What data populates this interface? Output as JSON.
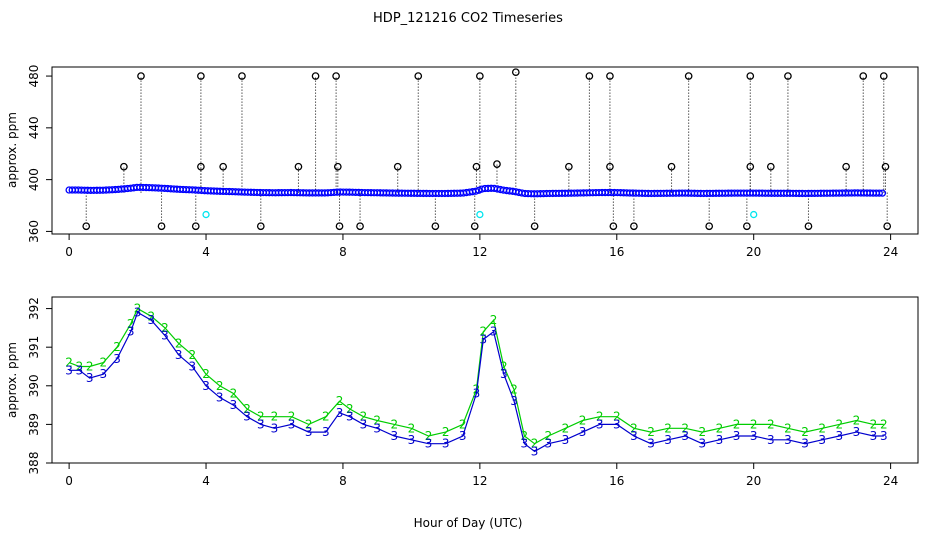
{
  "title": "HDP_121216  CO2 Timeseries",
  "chart_data": [
    {
      "type": "scatter",
      "panel": "top",
      "title": "HDP_121216  CO2 Timeseries",
      "xlabel": "",
      "ylabel": "approx. ppm",
      "xlim": [
        -0.5,
        24.8
      ],
      "ylim": [
        358,
        487
      ],
      "xticks": [
        "0",
        "4",
        "8",
        "12",
        "16",
        "20",
        "24"
      ],
      "yticks": [
        "360",
        "400",
        "440",
        "480"
      ],
      "baseline": 390,
      "colors": {
        "main": "#0000ff",
        "spike": "#000000",
        "cal": "#00e5ee"
      },
      "high_spikes": [
        [
          2.1,
          480
        ],
        [
          3.85,
          480
        ],
        [
          5.05,
          480
        ],
        [
          7.2,
          480
        ],
        [
          7.8,
          480
        ],
        [
          10.2,
          480
        ],
        [
          12.0,
          480
        ],
        [
          13.05,
          483
        ],
        [
          15.2,
          480
        ],
        [
          15.8,
          480
        ],
        [
          18.1,
          480
        ],
        [
          19.9,
          480
        ],
        [
          21.0,
          480
        ],
        [
          23.2,
          480
        ],
        [
          23.8,
          480
        ]
      ],
      "mid_spikes": [
        [
          1.6,
          410
        ],
        [
          3.85,
          410
        ],
        [
          4.5,
          410
        ],
        [
          6.7,
          410
        ],
        [
          7.85,
          410
        ],
        [
          9.6,
          410
        ],
        [
          11.9,
          410
        ],
        [
          12.5,
          412
        ],
        [
          14.6,
          410
        ],
        [
          15.8,
          410
        ],
        [
          17.6,
          410
        ],
        [
          19.9,
          410
        ],
        [
          20.5,
          410
        ],
        [
          22.7,
          410
        ],
        [
          23.85,
          410
        ]
      ],
      "low_spikes": [
        [
          0.5,
          364
        ],
        [
          2.7,
          364
        ],
        [
          3.7,
          364
        ],
        [
          5.6,
          364
        ],
        [
          7.9,
          364
        ],
        [
          8.5,
          364
        ],
        [
          10.7,
          364
        ],
        [
          11.85,
          364
        ],
        [
          13.6,
          364
        ],
        [
          15.9,
          364
        ],
        [
          16.5,
          364
        ],
        [
          18.7,
          364
        ],
        [
          19.8,
          364
        ],
        [
          21.6,
          364
        ],
        [
          23.9,
          364
        ]
      ],
      "cal_points": [
        [
          4.0,
          373
        ],
        [
          12.0,
          373
        ],
        [
          20.0,
          373
        ]
      ]
    },
    {
      "type": "line",
      "panel": "bottom",
      "xlabel": "Hour of Day (UTC)",
      "ylabel": "approx. ppm",
      "xlim": [
        -0.5,
        24.8
      ],
      "ylim": [
        388,
        392.3
      ],
      "xticks": [
        "0",
        "4",
        "8",
        "12",
        "16",
        "20",
        "24"
      ],
      "yticks": [
        "388",
        "389",
        "390",
        "391",
        "392"
      ],
      "series": [
        {
          "name": "3",
          "color": "#0000cd",
          "x": [
            0,
            0.3,
            0.6,
            1.0,
            1.4,
            1.8,
            2.0,
            2.4,
            2.8,
            3.2,
            3.6,
            4.0,
            4.4,
            4.8,
            5.2,
            5.6,
            6.0,
            6.5,
            7.0,
            7.5,
            7.9,
            8.2,
            8.6,
            9.0,
            9.5,
            10.0,
            10.5,
            11.0,
            11.5,
            11.9,
            12.1,
            12.4,
            12.7,
            13.0,
            13.3,
            13.6,
            14.0,
            14.5,
            15.0,
            15.5,
            16.0,
            16.5,
            17.0,
            17.5,
            18.0,
            18.5,
            19.0,
            19.5,
            20.0,
            20.5,
            21.0,
            21.5,
            22.0,
            22.5,
            23.0,
            23.5,
            23.8
          ],
          "values": [
            390.4,
            390.4,
            390.2,
            390.3,
            390.7,
            391.4,
            391.9,
            391.7,
            391.3,
            390.8,
            390.5,
            390.0,
            389.7,
            389.5,
            389.2,
            389.0,
            388.9,
            389.0,
            388.8,
            388.8,
            389.3,
            389.2,
            389.0,
            388.9,
            388.7,
            388.6,
            388.5,
            388.5,
            388.7,
            389.8,
            391.2,
            391.4,
            390.3,
            389.6,
            388.5,
            388.3,
            388.5,
            388.6,
            388.8,
            389.0,
            389.0,
            388.7,
            388.5,
            388.6,
            388.7,
            388.5,
            388.6,
            388.7,
            388.7,
            388.6,
            388.6,
            388.5,
            388.6,
            388.7,
            388.8,
            388.7,
            388.7
          ]
        },
        {
          "name": "2",
          "color": "#00cd00",
          "x": [
            0,
            0.3,
            0.6,
            1.0,
            1.4,
            1.8,
            2.0,
            2.4,
            2.8,
            3.2,
            3.6,
            4.0,
            4.4,
            4.8,
            5.2,
            5.6,
            6.0,
            6.5,
            7.0,
            7.5,
            7.9,
            8.2,
            8.6,
            9.0,
            9.5,
            10.0,
            10.5,
            11.0,
            11.5,
            11.9,
            12.1,
            12.4,
            12.7,
            13.0,
            13.3,
            13.6,
            14.0,
            14.5,
            15.0,
            15.5,
            16.0,
            16.5,
            17.0,
            17.5,
            18.0,
            18.5,
            19.0,
            19.5,
            20.0,
            20.5,
            21.0,
            21.5,
            22.0,
            22.5,
            23.0,
            23.5,
            23.8
          ],
          "values": [
            390.6,
            390.5,
            390.5,
            390.6,
            391.0,
            391.6,
            392.0,
            391.8,
            391.5,
            391.1,
            390.8,
            390.3,
            390.0,
            389.8,
            389.4,
            389.2,
            389.2,
            389.2,
            389.0,
            389.2,
            389.6,
            389.4,
            389.2,
            389.1,
            389.0,
            388.9,
            388.7,
            388.8,
            389.0,
            389.9,
            391.4,
            391.7,
            390.5,
            389.9,
            388.7,
            388.5,
            388.7,
            388.9,
            389.1,
            389.2,
            389.2,
            388.9,
            388.8,
            388.9,
            388.9,
            388.8,
            388.9,
            389.0,
            389.0,
            389.0,
            388.9,
            388.8,
            388.9,
            389.0,
            389.1,
            389.0,
            389.0
          ]
        }
      ]
    }
  ]
}
